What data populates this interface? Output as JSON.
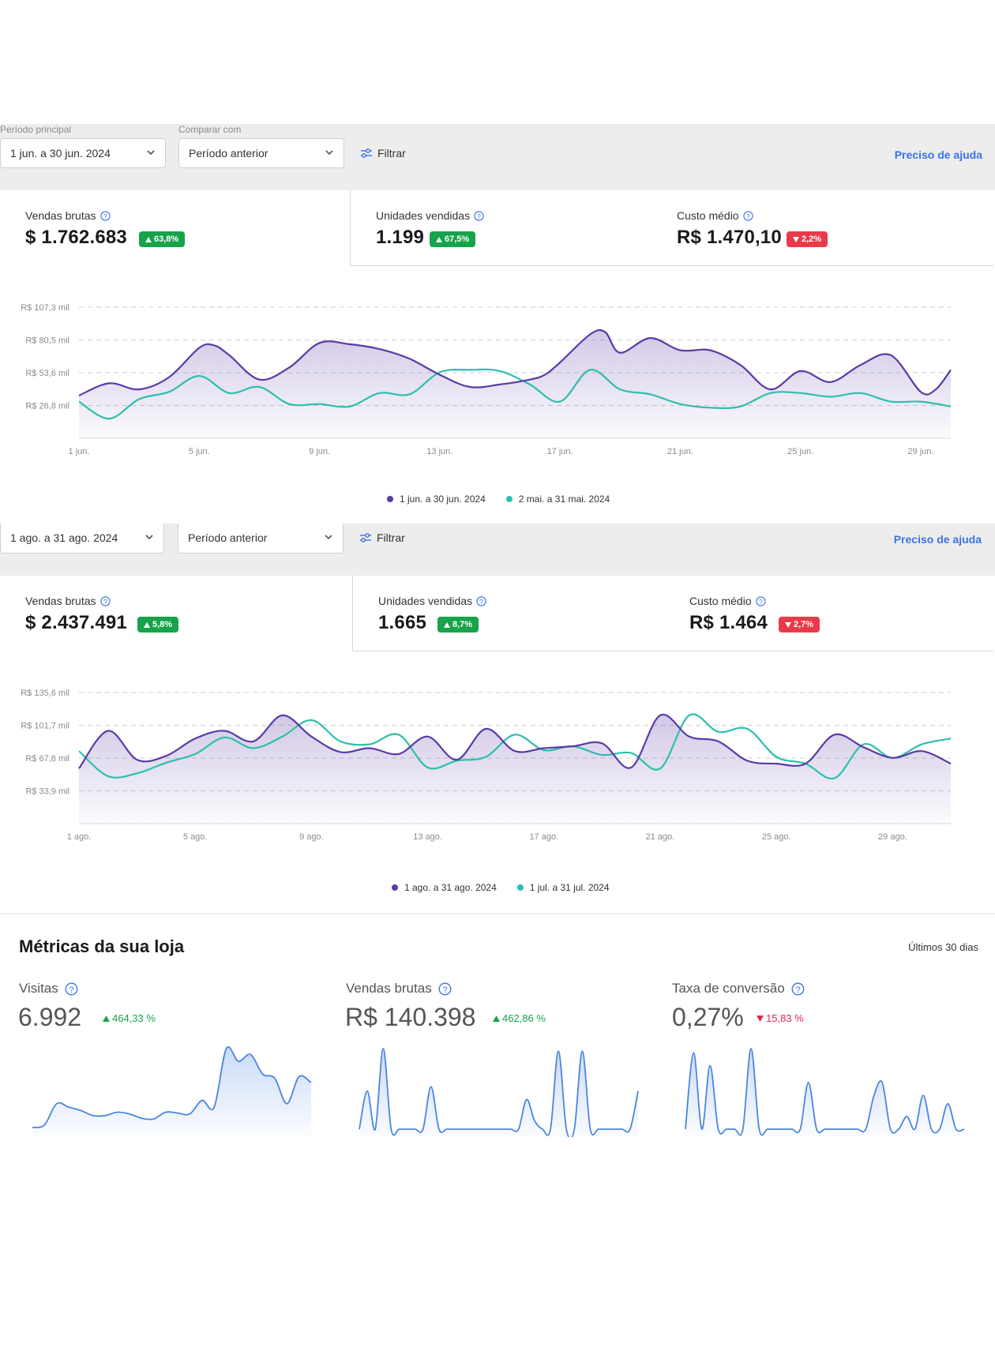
{
  "colors": {
    "primary": "#5b3aa6",
    "comparison": "#2cbfad",
    "up": "#17a34a",
    "down": "#ea3a4a",
    "link": "#3b73e5",
    "spark": "#4a86e0"
  },
  "section1": {
    "period_label": "Período principal",
    "compare_label": "Comparar com",
    "period_value": "1 jun. a 30 jun. 2024",
    "compare_value": "Período anterior",
    "filter_label": "Filtrar",
    "help_link": "Preciso de ajuda",
    "kpis": [
      {
        "title": "Vendas brutas",
        "value": "$ 1.762.683",
        "change": "63,8%",
        "direction": "up"
      },
      {
        "title": "Unidades vendidas",
        "value": "1.199",
        "change": "67,5%",
        "direction": "up"
      },
      {
        "title": "Custo médio",
        "value": "R$ 1.470,10",
        "change": "2,2%",
        "direction": "down"
      }
    ]
  },
  "section2": {
    "period_value": "1 ago. a 31 ago. 2024",
    "compare_value": "Período anterior",
    "filter_label": "Filtrar",
    "help_link": "Preciso de ajuda",
    "kpis": [
      {
        "title": "Vendas brutas",
        "value": "$ 2.437.491",
        "change": "5,8%",
        "direction": "up"
      },
      {
        "title": "Unidades vendidas",
        "value": "1.665",
        "change": "8,7%",
        "direction": "up"
      },
      {
        "title": "Custo médio",
        "value": "R$ 1.464",
        "change": "2,7%",
        "direction": "down"
      }
    ]
  },
  "chart_data": [
    {
      "type": "area",
      "y_ticks": [
        "R$ 107,3 mil",
        "R$ 80,5 mil",
        "R$ 53,6 mil",
        "R$ 26,8 mil"
      ],
      "ylim": [
        0,
        107.3
      ],
      "x_ticks": [
        "1 jun.",
        "5 jun.",
        "9 jun.",
        "13 jun.",
        "17 jun.",
        "21 jun.",
        "25 jun.",
        "29 jun."
      ],
      "x_tick_days": [
        1,
        5,
        9,
        13,
        17,
        21,
        25,
        29
      ],
      "x_range": [
        1,
        30
      ],
      "grid": true,
      "legend_position": "bottom",
      "series": [
        {
          "name": "1 jun. a 30 jun. 2024",
          "color": "#5b3aa6",
          "x": [
            1,
            2,
            3,
            4,
            5,
            5.5,
            6,
            7,
            8,
            9,
            10,
            11,
            12,
            13,
            14,
            15,
            16,
            16.5,
            17,
            18,
            18.5,
            19,
            20,
            21,
            22,
            23,
            24,
            25,
            26,
            27,
            28,
            29,
            29.5,
            30
          ],
          "values": [
            35,
            45,
            40,
            50,
            74,
            76,
            68,
            48,
            58,
            78,
            77,
            73,
            65,
            52,
            42,
            44,
            48,
            52,
            62,
            85,
            87,
            70,
            82,
            72,
            72,
            60,
            40,
            55,
            46,
            60,
            68,
            38,
            40,
            56
          ]
        },
        {
          "name": "2 mai. a 31 mai. 2024",
          "color": "#2cbfad",
          "x": [
            1,
            2,
            3,
            4,
            5,
            6,
            7,
            8,
            9,
            10,
            11,
            12,
            13,
            14,
            15,
            16,
            17,
            18,
            19,
            20,
            21,
            22,
            23,
            24,
            25,
            26,
            27,
            28,
            29,
            30
          ],
          "values": [
            30,
            16,
            32,
            38,
            51,
            37,
            42,
            28,
            28,
            26,
            37,
            36,
            54,
            56,
            55,
            44,
            30,
            56,
            40,
            36,
            28,
            25,
            26,
            37,
            37,
            34,
            37,
            30,
            30,
            26
          ]
        }
      ]
    },
    {
      "type": "area",
      "y_ticks": [
        "R$ 135,6 mil",
        "R$ 101,7 mil",
        "R$ 67,8 mil",
        "R$ 33,9 mil"
      ],
      "ylim": [
        0,
        135.6
      ],
      "x_ticks": [
        "1 ago.",
        "5 ago.",
        "9 ago.",
        "13 ago.",
        "17 ago.",
        "21 ago.",
        "25 ago.",
        "29 ago."
      ],
      "x_tick_days": [
        1,
        5,
        9,
        13,
        17,
        21,
        25,
        29
      ],
      "x_range": [
        1,
        31
      ],
      "grid": true,
      "legend_position": "bottom",
      "series": [
        {
          "name": "1 ago. a 31 ago. 2024",
          "color": "#5b3aa6",
          "x": [
            1,
            2,
            3,
            4,
            5,
            6,
            7,
            8,
            9,
            10,
            11,
            12,
            13,
            14,
            15,
            16,
            17,
            18,
            19,
            20,
            21,
            22,
            23,
            24,
            25,
            26,
            27,
            28,
            29,
            30,
            31
          ],
          "values": [
            57,
            96,
            66,
            70,
            88,
            96,
            85,
            112,
            90,
            74,
            78,
            72,
            90,
            66,
            98,
            75,
            78,
            80,
            83,
            58,
            112,
            90,
            85,
            65,
            62,
            62,
            92,
            79,
            68,
            75,
            62
          ]
        },
        {
          "name": "1 jul. a 31 jul. 2024",
          "color": "#2cbfad",
          "x": [
            1,
            2,
            3,
            4,
            5,
            6,
            7,
            8,
            9,
            10,
            11,
            12,
            13,
            14,
            15,
            16,
            17,
            18,
            19,
            20,
            21,
            22,
            23,
            24,
            25,
            26,
            27,
            28,
            29,
            30,
            31
          ],
          "values": [
            75,
            49,
            52,
            63,
            72,
            89,
            78,
            90,
            107,
            85,
            82,
            92,
            58,
            65,
            69,
            92,
            76,
            80,
            71,
            73,
            57,
            112,
            95,
            98,
            69,
            62,
            47,
            82,
            68,
            82,
            88
          ]
        }
      ]
    }
  ],
  "metrics": {
    "title": "Métricas da sua loja",
    "period": "Últimos 30 dias",
    "items": [
      {
        "label": "Visitas",
        "value": "6.992",
        "change": "464,33 %",
        "direction": "up",
        "spark": [
          2,
          5,
          30,
          26,
          22,
          16,
          16,
          20,
          18,
          13,
          12,
          20,
          19,
          18,
          34,
          26,
          95,
          80,
          88,
          65,
          60,
          30,
          62,
          55
        ]
      },
      {
        "label": "Vendas brutas",
        "value": "R$ 140.398",
        "change": "462,86 %",
        "direction": "up",
        "spark": [
          0,
          45,
          0,
          95,
          0,
          0,
          0,
          0,
          0,
          50,
          0,
          0,
          0,
          0,
          0,
          0,
          0,
          0,
          0,
          0,
          0,
          35,
          10,
          0,
          0,
          92,
          0,
          0,
          92,
          0,
          0,
          0,
          0,
          0,
          0,
          45
        ]
      },
      {
        "label": "Taxa de conversão",
        "value": "0,27%",
        "change": "15,83 %",
        "direction": "down",
        "spark": [
          0,
          90,
          0,
          75,
          0,
          0,
          0,
          0,
          95,
          0,
          0,
          0,
          0,
          0,
          0,
          55,
          0,
          0,
          0,
          0,
          0,
          0,
          0,
          40,
          55,
          0,
          0,
          15,
          0,
          40,
          0,
          0,
          30,
          0,
          0
        ]
      }
    ]
  }
}
